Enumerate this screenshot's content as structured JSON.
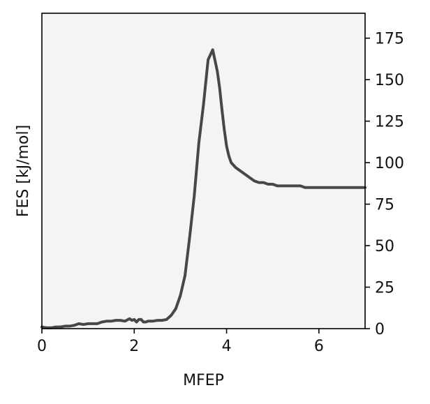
{
  "chart_data": {
    "type": "line",
    "title": "",
    "xlabel": "MFEP",
    "ylabel": "FES [kJ/mol]",
    "xlim": [
      0,
      7
    ],
    "ylim": [
      0,
      190
    ],
    "y_axis_side": "right",
    "x_ticks": [
      0,
      2,
      4,
      6
    ],
    "y_ticks": [
      0,
      25,
      50,
      75,
      100,
      125,
      150,
      175
    ],
    "grid": false,
    "legend": "none",
    "colors": {
      "line": "#474747",
      "plot_background": "#f4f4f4",
      "axes": "#000000"
    },
    "series": [
      {
        "x": [
          0.0,
          0.1,
          0.2,
          0.3,
          0.4,
          0.5,
          0.6,
          0.7,
          0.8,
          0.9,
          1.0,
          1.1,
          1.2,
          1.3,
          1.4,
          1.5,
          1.6,
          1.7,
          1.8,
          1.9,
          1.95,
          2.0,
          2.05,
          2.1,
          2.15,
          2.2,
          2.25,
          2.3,
          2.4,
          2.5,
          2.6,
          2.7,
          2.8,
          2.9,
          3.0,
          3.1,
          3.2,
          3.3,
          3.4,
          3.5,
          3.6,
          3.65,
          3.7,
          3.8,
          3.85,
          3.9,
          3.95,
          4.0,
          4.05,
          4.1,
          4.2,
          4.3,
          4.4,
          4.5,
          4.6,
          4.7,
          4.8,
          4.9,
          5.0,
          5.1,
          5.2,
          5.3,
          5.4,
          5.5,
          5.6,
          5.7,
          5.8,
          5.9,
          6.0,
          6.1,
          6.2,
          6.3,
          6.4,
          6.5,
          6.6,
          6.7,
          6.8,
          6.9,
          7.0
        ],
        "values": [
          1,
          0.5,
          0.5,
          1,
          1,
          1.5,
          1.5,
          2,
          3,
          2.5,
          3,
          3,
          3,
          4,
          4.5,
          4.5,
          5,
          5,
          4.5,
          6,
          5,
          5.5,
          4,
          5.5,
          5.5,
          4,
          4,
          4.5,
          4.5,
          5,
          5,
          5.5,
          8,
          12,
          20,
          32,
          55,
          80,
          112,
          135,
          162,
          165,
          168,
          155,
          145,
          132,
          120,
          110,
          104,
          100,
          97,
          95,
          93,
          91,
          89,
          88,
          88,
          87,
          87,
          86,
          86,
          86,
          86,
          86,
          86,
          85,
          85,
          85,
          85,
          85,
          85,
          85,
          85,
          85,
          85,
          85,
          85,
          85,
          85
        ]
      }
    ]
  }
}
